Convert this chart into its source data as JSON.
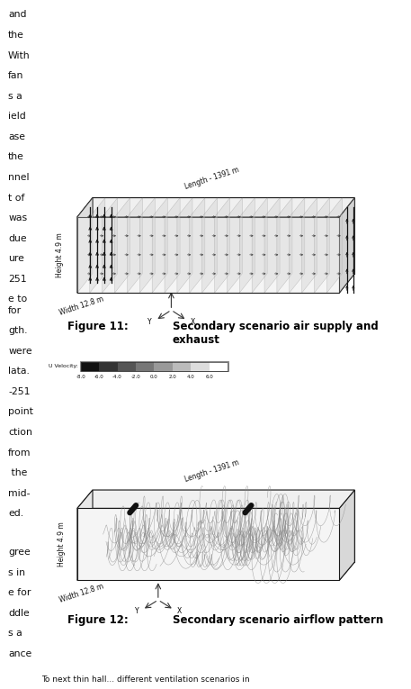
{
  "fig_width": 4.57,
  "fig_height": 7.65,
  "dpi": 100,
  "bg_color": "#ffffff",
  "left_text1": [
    "and",
    "the",
    "With",
    "fan",
    "s a",
    "ield",
    "ase",
    "the",
    "nnel",
    "t of",
    "was",
    "due",
    "ure",
    "251",
    "e to"
  ],
  "left_text2": [
    "for",
    "gth.",
    "were",
    "lata.",
    "-251",
    "point",
    "ction",
    "from",
    " the",
    "mid-",
    "ed."
  ],
  "left_text3": [
    "gree",
    "s in",
    "e for",
    "ddle",
    "s a",
    "ance"
  ],
  "fig11_label": "Figure 11:",
  "fig11_title": "Secondary scenario air supply and\nexhaust",
  "fig12_label": "Figure 12:",
  "fig12_title": "Secondary scenario airflow pattern",
  "colorbar_values": [
    "-8.0",
    "-6.0",
    "-4.0",
    "-2.0",
    "0.0",
    "2.0",
    "4.0",
    "6.0"
  ],
  "colorbar_label": "U Velocity:",
  "colorbar_colors": [
    "#111111",
    "#333333",
    "#555555",
    "#777777",
    "#999999",
    "#bbbbbb",
    "#dddddd",
    "#ffffff"
  ],
  "dim_height": "Height 4.9 m",
  "dim_width": "Width 12.8 m",
  "dim_length": "Length - 1391 m",
  "bottom_text": "To next thin hall... different ventilation scenarios in"
}
